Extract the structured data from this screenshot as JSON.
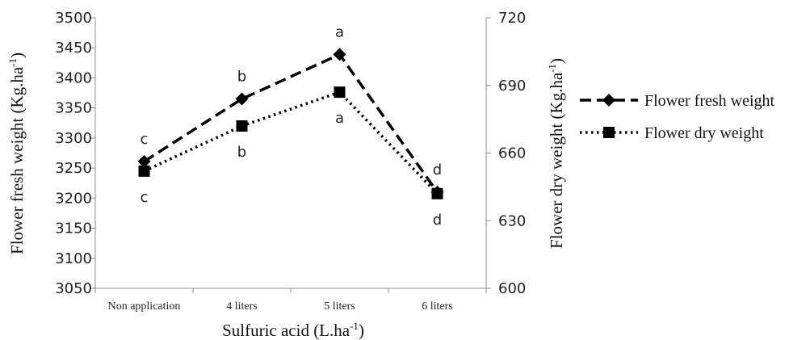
{
  "chart_data": {
    "type": "line",
    "xlabel": "Sulfuric acid (L.ha",
    "xlabel_sup": "-1",
    "xlabel_suffix": ")",
    "categories": [
      "Non application",
      "4 liters",
      "5 liters",
      "6 liters"
    ],
    "y_left": {
      "label": "Flower fresh weight (Kg.ha",
      "label_sup": "-1",
      "label_suffix": ")",
      "ylim": [
        3050,
        3500
      ],
      "ticks": [
        "3050",
        "3100",
        "3150",
        "3200",
        "3250",
        "3300",
        "3350",
        "3400",
        "3450",
        "3500"
      ]
    },
    "y_right": {
      "label": "Flower dry weight (Kg.ha",
      "label_sup": "-1",
      "label_suffix": ")",
      "ylim": [
        600,
        720
      ],
      "ticks": [
        "600",
        "630",
        "660",
        "690",
        "720"
      ]
    },
    "series": [
      {
        "name": "Flower fresh weight",
        "axis": "left",
        "values": [
          3261,
          3365,
          3439,
          3210
        ],
        "letters": [
          "c",
          "b",
          "a",
          "d"
        ],
        "style": "dashed",
        "marker": "diamond",
        "color": "#000000"
      },
      {
        "name": "Flower dry weight",
        "axis": "right",
        "values": [
          652,
          672,
          687,
          642
        ],
        "letters": [
          "c",
          "b",
          "a",
          "d"
        ],
        "style": "dotted",
        "marker": "square",
        "color": "#000000"
      }
    ],
    "legend_position": "right",
    "grid": false
  }
}
